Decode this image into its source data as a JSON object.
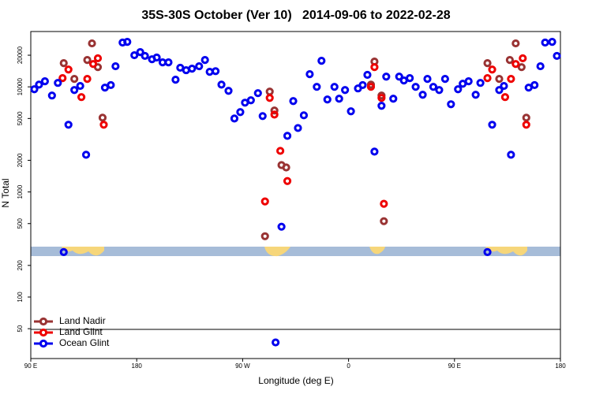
{
  "chart_data": {
    "type": "scatter",
    "title": "35S-30S October (Ver 10)   2014-09-06 to 2022-02-28",
    "xlabel": "Longitude (deg E)",
    "ylabel": "N Total",
    "log_y": true,
    "legend": "bottom left",
    "xlim": [
      90,
      540
    ],
    "xticks": [
      {
        "value": 90,
        "label": "90 E"
      },
      180,
      {
        "value": 270,
        "label": "90 W"
      },
      {
        "value": 360,
        "label": "0"
      },
      {
        "value": 450,
        "label": "90 E"
      },
      {
        "value": 540,
        "label": "180"
      }
    ],
    "ylim": [
      26,
      33600
    ],
    "yticks": [
      50,
      100,
      200,
      500,
      1000,
      2000,
      5000,
      10000,
      20000
    ],
    "series": [
      {
        "name": "Land Nadir",
        "color": "#993333",
        "x": [
          118,
          127,
          138,
          142,
          147,
          151,
          289,
          293,
          297,
          303,
          307,
          379,
          382,
          388,
          390,
          478,
          488,
          497,
          502,
          507,
          511
        ],
        "values": [
          16800,
          11900,
          18000,
          25900,
          15400,
          5090,
          379,
          9010,
          5950,
          1800,
          1710,
          10500,
          17400,
          8270,
          527,
          16800,
          11900,
          18000,
          25900,
          15400,
          5090
        ]
      },
      {
        "name": "Land Glint",
        "color": "#ee0000",
        "x": [
          117,
          122,
          133,
          138,
          143,
          147,
          152,
          289,
          293,
          297,
          302,
          308,
          379,
          382,
          388,
          390,
          478,
          482,
          493,
          498,
          502,
          508,
          511
        ],
        "values": [
          12100,
          14600,
          7990,
          11900,
          16500,
          18700,
          4360,
          812,
          7850,
          5450,
          2460,
          1270,
          10000,
          15400,
          7850,
          771,
          12100,
          14600,
          7990,
          11900,
          16500,
          18700,
          4360
        ]
      },
      {
        "name": "Ocean Glint",
        "color": "#0000ee",
        "x": [
          93,
          97,
          102,
          108,
          113,
          118,
          122,
          127,
          132,
          137,
          153,
          158,
          162,
          168,
          172,
          178,
          183,
          187,
          193,
          197,
          202,
          207,
          213,
          217,
          222,
          227,
          233,
          238,
          242,
          247,
          252,
          258,
          263,
          268,
          272,
          277,
          283,
          287,
          303,
          308,
          313,
          317,
          322,
          327,
          333,
          337,
          342,
          348,
          352,
          357,
          362,
          368,
          372,
          376,
          382,
          388,
          392,
          398,
          403,
          407,
          412,
          417,
          423,
          427,
          432,
          437,
          442,
          447,
          453,
          457,
          462,
          468,
          472,
          478,
          482,
          488,
          492,
          498,
          513,
          518,
          523,
          527,
          533,
          537,
          298
        ],
        "values": [
          9490,
          10500,
          11300,
          8270,
          10900,
          268,
          4360,
          9330,
          10200,
          2260,
          9830,
          10400,
          15700,
          26400,
          26800,
          20000,
          21400,
          19700,
          18300,
          19000,
          17100,
          17100,
          11700,
          15200,
          14400,
          14900,
          15700,
          18000,
          13900,
          14100,
          10500,
          9170,
          5000,
          5750,
          7070,
          7450,
          8710,
          5270,
          467,
          3420,
          7320,
          4060,
          5360,
          13200,
          10000,
          17700,
          7580,
          10000,
          7710,
          9330,
          5850,
          9660,
          10400,
          13000,
          2420,
          6600,
          12500,
          7710,
          12500,
          11500,
          12100,
          10000,
          8410,
          11900,
          10000,
          9330,
          11900,
          6830,
          9490,
          10700,
          11300,
          8410,
          10900,
          268,
          4360,
          9330,
          10200,
          2260,
          9830,
          10400,
          15700,
          26400,
          26800,
          19700,
          37
        ]
      }
    ]
  }
}
